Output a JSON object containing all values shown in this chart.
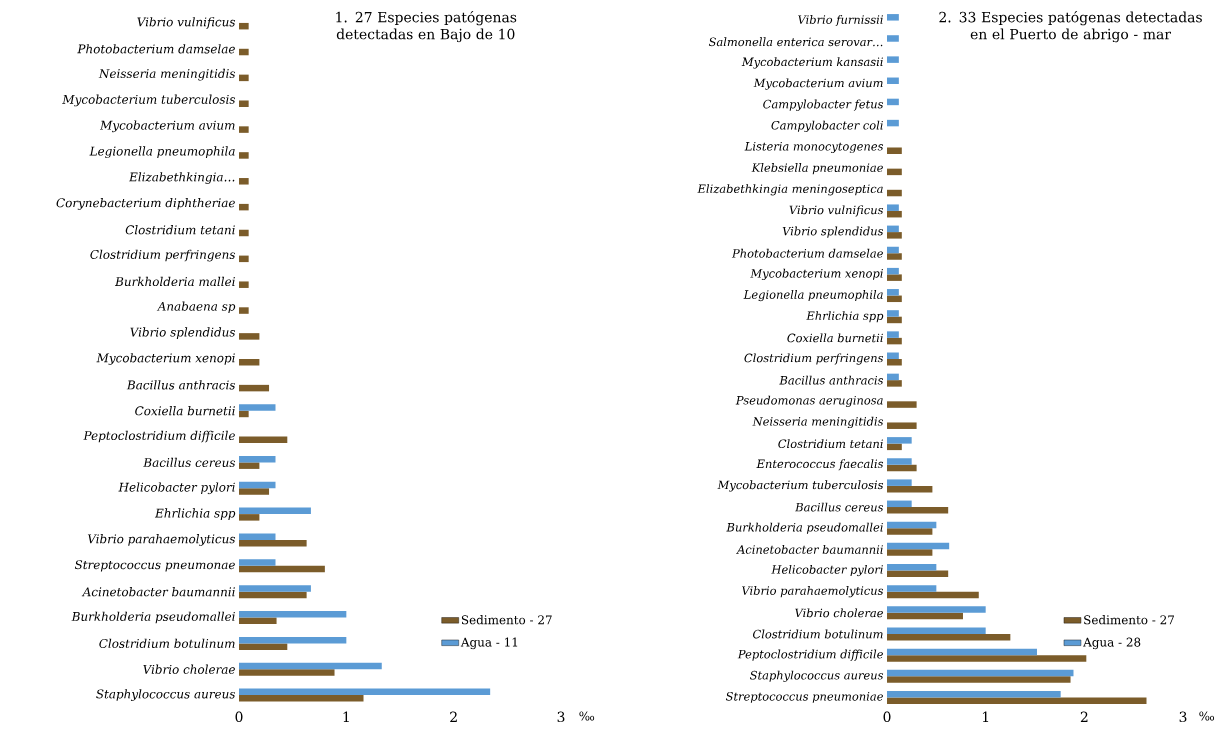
{
  "chart_data": [
    {
      "type": "bar",
      "orientation": "horizontal",
      "title": "1. 27 Especies patógenas detectadas en Bajo de 10",
      "xlabel": "‰",
      "categories": [
        "Vibrio vulnificus",
        "Photobacterium damselae",
        "Neisseria meningitidis",
        "Mycobacterium tuberculosis",
        "Mycobacterium avium",
        "Legionella pneumophila",
        "Elizabethkingia…",
        "Corynebacterium diphtheriae",
        "Clostridium tetani",
        "Clostridium perfringens",
        "Burkholderia mallei",
        "Anabaena sp",
        "Vibrio splendidus",
        "Mycobacterium xenopi",
        "Bacillus anthracis",
        "Coxiella burnetii",
        "Peptoclostridium difficile",
        "Bacillus cereus",
        "Helicobacter pylori",
        "Ehrlichia spp",
        "Vibrio parahaemolyticus",
        "Streptococcus pneumonae",
        "Acinetobacter baumannii",
        "Burkholderia pseudomallei",
        "Clostridium botulinum",
        "Vibrio cholerae",
        "Staphylococcus aureus"
      ],
      "series": [
        {
          "name": "Sedimento - 27",
          "color": "#7b5c2a",
          "values": [
            0.09,
            0.09,
            0.09,
            0.09,
            0.09,
            0.09,
            0.09,
            0.09,
            0.09,
            0.09,
            0.09,
            0.09,
            0.19,
            0.19,
            0.28,
            0.09,
            0.45,
            0.19,
            0.28,
            0.19,
            0.63,
            0.8,
            0.63,
            0.35,
            0.45,
            0.89,
            1.16
          ]
        },
        {
          "name": "Agua - 11",
          "color": "#5b9bd5",
          "values": [
            null,
            null,
            null,
            null,
            null,
            null,
            null,
            null,
            null,
            null,
            null,
            null,
            null,
            null,
            null,
            0.34,
            null,
            0.34,
            0.34,
            0.67,
            0.34,
            0.34,
            0.67,
            1.0,
            1.0,
            1.33,
            2.34
          ]
        }
      ],
      "xlim": [
        0,
        3
      ],
      "xticks": [
        0,
        1,
        2,
        3
      ],
      "legend": "bottom right"
    },
    {
      "type": "bar",
      "orientation": "horizontal",
      "title": "2. 33 Especies patógenas detectadas en el Puerto de abrigo - mar",
      "xlabel": "‰",
      "categories": [
        "Vibrio furnissii",
        "Salmonella enterica serovar…",
        "Mycobacterium kansasii",
        "Mycobacterium avium",
        "Campylobacter fetus",
        "Campylobacter coli",
        "Listeria monocytogenes",
        "Klebsiella pneumoniae",
        "Elizabethkingia meningoseptica",
        "Vibrio vulnificus",
        "Vibrio splendidus",
        "Photobacterium damselae",
        "Mycobacterium xenopi",
        "Legionella pneumophila",
        "Ehrlichia spp",
        "Coxiella burnetii",
        "Clostridium perfringens",
        "Bacillus anthracis",
        "Pseudomonas aeruginosa",
        "Neisseria meningitidis",
        "Clostridium tetani",
        "Enterococcus faecalis",
        "Mycobacterium tuberculosis",
        "Bacillus cereus",
        "Burkholderia pseudomallei",
        "Acinetobacter baumannii",
        "Helicobacter pylori",
        "Vibrio parahaemolyticus",
        "Vibrio cholerae",
        "Clostridium botulinum",
        "Peptoclostridium difficile",
        "Staphylococcus aureus",
        "Streptococcus pneumoniae"
      ],
      "series": [
        {
          "name": "Sedimento - 27",
          "color": "#7b5c2a",
          "values": [
            null,
            null,
            null,
            null,
            null,
            null,
            0.15,
            0.15,
            0.15,
            0.15,
            0.15,
            0.15,
            0.15,
            0.15,
            0.15,
            0.15,
            0.15,
            0.15,
            0.3,
            0.3,
            0.15,
            0.3,
            0.46,
            0.62,
            0.46,
            0.46,
            0.62,
            0.93,
            0.77,
            1.25,
            2.02,
            1.86,
            2.63
          ]
        },
        {
          "name": "Agua - 28",
          "color": "#5b9bd5",
          "values": [
            0.12,
            0.12,
            0.12,
            0.12,
            0.12,
            0.12,
            null,
            null,
            null,
            0.12,
            0.12,
            0.12,
            0.12,
            0.12,
            0.12,
            0.12,
            0.12,
            0.12,
            null,
            null,
            0.25,
            0.25,
            0.25,
            0.25,
            0.5,
            0.63,
            0.5,
            0.5,
            1.0,
            1.0,
            1.52,
            1.89,
            1.76
          ]
        }
      ],
      "xlim": [
        0,
        3
      ],
      "xticks": [
        0,
        1,
        2,
        3
      ],
      "legend": "bottom right"
    }
  ]
}
